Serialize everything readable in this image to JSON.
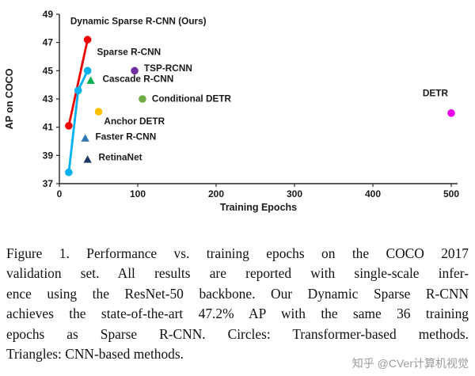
{
  "figure": {
    "watermark": "知乎 @CVer计算机视觉"
  },
  "caption": {
    "lines": [
      "Figure 1. Performance vs. training epochs on the COCO 2017",
      "validation set. All results are reported with single-scale infer-",
      "ence using the ResNet-50 backbone. Our Dynamic Sparse R-CNN",
      "achieves the state-of-the-art 47.2% AP with the same 36 training",
      "epochs as Sparse R-CNN. Circles: Transformer-based methods.",
      "Triangles: CNN-based methods."
    ]
  },
  "chart_data": {
    "type": "scatter",
    "title": "",
    "xlabel": "Training Epochs",
    "ylabel": "AP on COCO",
    "xlim": [
      0,
      500
    ],
    "ylim": [
      37,
      49
    ],
    "xticks": [
      0,
      100,
      200,
      300,
      400,
      500
    ],
    "yticks": [
      37,
      39,
      41,
      43,
      45,
      47,
      49
    ],
    "grid": false,
    "legend_note": "Circles: Transformer-based methods. Triangles: CNN-based methods.",
    "series": [
      {
        "name": "Dynamic Sparse R-CNN (Ours)",
        "method_family": "transformer",
        "draw": "line",
        "marker": "circle",
        "color": "#ee0000",
        "points": [
          [
            12,
            41.1
          ],
          [
            36,
            47.2
          ]
        ],
        "label": {
          "text": "Dynamic Sparse R-CNN (Ours)",
          "x": 14,
          "y": 48.3,
          "anchor": "start"
        }
      },
      {
        "name": "Sparse R-CNN",
        "method_family": "transformer",
        "draw": "line",
        "marker": "circle",
        "color": "#00b0f0",
        "points": [
          [
            12,
            37.8
          ],
          [
            24,
            43.6
          ],
          [
            36,
            45.0
          ]
        ],
        "label": {
          "text": "Sparse R-CNN",
          "x": 48,
          "y": 46.1,
          "anchor": "start"
        }
      },
      {
        "name": "TSP-RCNN",
        "method_family": "transformer",
        "draw": "point",
        "marker": "circle",
        "color": "#7030a0",
        "points": [
          [
            96,
            45.0
          ]
        ],
        "label": {
          "text": "TSP-RCNN",
          "x": 108,
          "y": 44.95,
          "anchor": "start"
        }
      },
      {
        "name": "Cascade R-CNN",
        "method_family": "cnn",
        "draw": "point",
        "marker": "triangle",
        "color": "#00b050",
        "points": [
          [
            40,
            44.3
          ]
        ],
        "label": {
          "text": "Cascade R-CNN",
          "x": 55,
          "y": 44.2,
          "anchor": "start"
        }
      },
      {
        "name": "Conditional DETR",
        "method_family": "transformer",
        "draw": "point",
        "marker": "circle",
        "color": "#70ad47",
        "points": [
          [
            106,
            43.0
          ]
        ],
        "label": {
          "text": "Conditional DETR",
          "x": 118,
          "y": 42.8,
          "anchor": "start"
        }
      },
      {
        "name": "Anchor DETR",
        "method_family": "transformer",
        "draw": "point",
        "marker": "circle",
        "color": "#ffc000",
        "points": [
          [
            50,
            42.1
          ]
        ],
        "label": {
          "text": "Anchor DETR",
          "x": 57,
          "y": 41.2,
          "anchor": "start"
        }
      },
      {
        "name": "Faster R-CNN",
        "method_family": "cnn",
        "draw": "point",
        "marker": "triangle",
        "color": "#2e75b6",
        "points": [
          [
            33,
            40.2
          ]
        ],
        "label": {
          "text": "Faster R-CNN",
          "x": 46,
          "y": 40.1,
          "anchor": "start"
        }
      },
      {
        "name": "RetinaNet",
        "method_family": "cnn",
        "draw": "point",
        "marker": "triangle",
        "color": "#1f3864",
        "points": [
          [
            36,
            38.7
          ]
        ],
        "label": {
          "text": "RetinaNet",
          "x": 50,
          "y": 38.65,
          "anchor": "start"
        }
      },
      {
        "name": "DETR",
        "method_family": "transformer",
        "draw": "point",
        "marker": "circle",
        "color": "#ea00ea",
        "points": [
          [
            500,
            42.0
          ]
        ],
        "label": {
          "text": "DETR",
          "x": 496,
          "y": 43.2,
          "anchor": "end"
        }
      }
    ]
  }
}
